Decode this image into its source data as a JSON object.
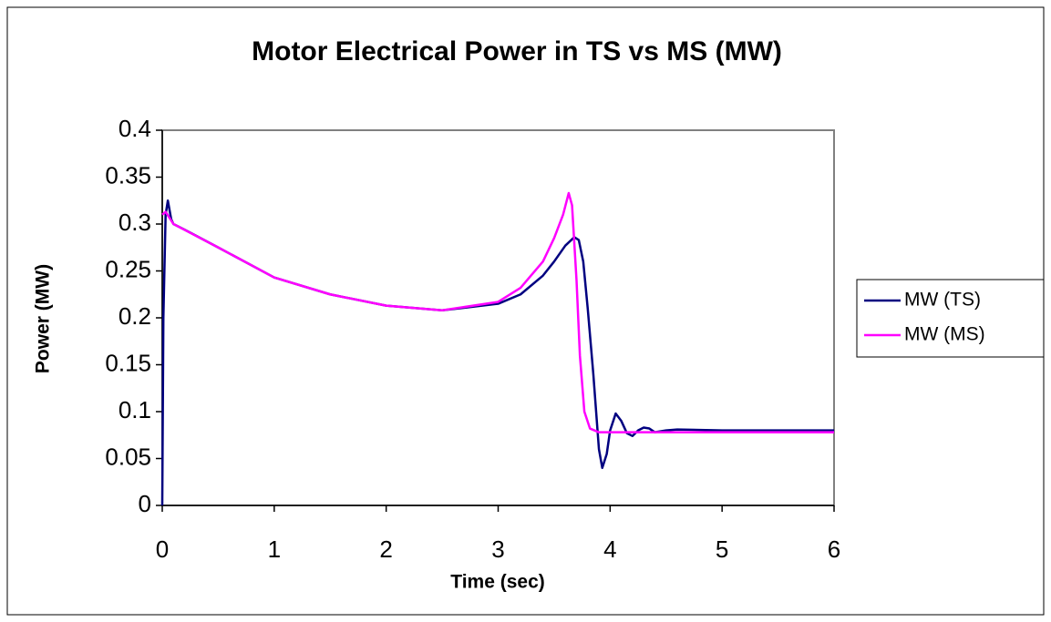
{
  "chart_data": {
    "type": "line",
    "title": "Motor Electrical Power in TS vs MS (MW)",
    "xlabel": "Time (sec)",
    "ylabel": "Power (MW)",
    "xlim": [
      0,
      6
    ],
    "xticks": [
      0,
      1,
      2,
      3,
      4,
      5,
      6
    ],
    "ylim": [
      0,
      0.4
    ],
    "yticks": [
      0,
      0.05,
      0.1,
      0.15,
      0.2,
      0.25,
      0.3,
      0.35,
      0.4
    ],
    "legend": "right",
    "series": [
      {
        "name": "MW (TS)",
        "color": "#000080",
        "x": [
          0,
          0.01,
          0.03,
          0.05,
          0.08,
          0.1,
          0.2,
          0.5,
          1,
          1.5,
          2,
          2.5,
          3,
          3.2,
          3.4,
          3.5,
          3.6,
          3.68,
          3.72,
          3.76,
          3.8,
          3.85,
          3.9,
          3.93,
          3.97,
          4.0,
          4.05,
          4.1,
          4.15,
          4.2,
          4.25,
          4.3,
          4.35,
          4.4,
          4.5,
          4.6,
          5,
          6
        ],
        "values": [
          0,
          0.2,
          0.31,
          0.325,
          0.305,
          0.3,
          0.294,
          0.275,
          0.243,
          0.225,
          0.213,
          0.208,
          0.215,
          0.225,
          0.245,
          0.26,
          0.277,
          0.286,
          0.283,
          0.26,
          0.21,
          0.14,
          0.06,
          0.04,
          0.055,
          0.08,
          0.098,
          0.09,
          0.077,
          0.074,
          0.08,
          0.083,
          0.082,
          0.078,
          0.08,
          0.081,
          0.08,
          0.08
        ]
      },
      {
        "name": "MW (MS)",
        "color": "#ff00ff",
        "x": [
          0,
          0.03,
          0.1,
          0.5,
          1,
          1.5,
          2,
          2.5,
          3,
          3.2,
          3.4,
          3.5,
          3.58,
          3.63,
          3.66,
          3.7,
          3.73,
          3.77,
          3.82,
          3.9,
          4,
          6
        ],
        "values": [
          0.31,
          0.313,
          0.3,
          0.275,
          0.243,
          0.225,
          0.213,
          0.208,
          0.217,
          0.232,
          0.26,
          0.285,
          0.31,
          0.333,
          0.32,
          0.24,
          0.16,
          0.1,
          0.082,
          0.078,
          0.078,
          0.078
        ]
      }
    ]
  }
}
